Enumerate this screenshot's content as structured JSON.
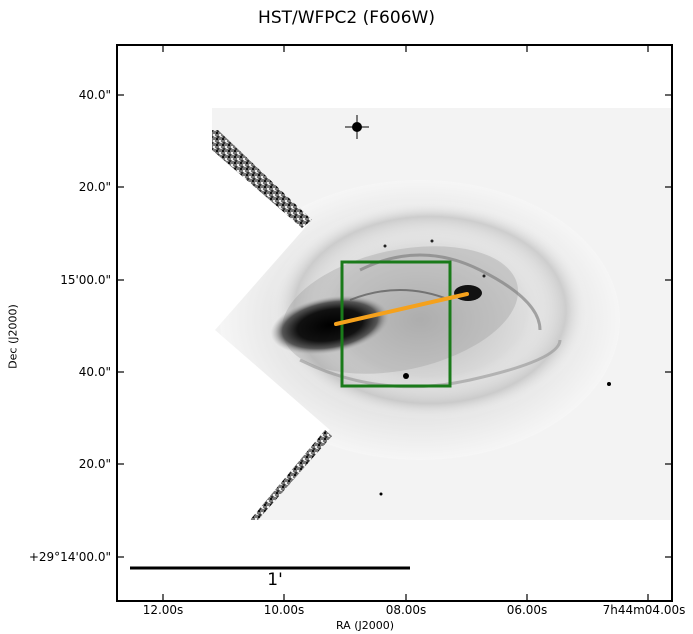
{
  "figure": {
    "title": "HST/WFPC2 (F606W)",
    "xlabel": "RA (J2000)",
    "ylabel": "Dec (J2000)",
    "x_ticks": [
      "12.00s",
      "10.00s",
      "08.00s",
      "06.00s",
      "7h44m04.00s"
    ],
    "y_ticks": [
      "40.0\"",
      "20.0\"",
      "15'00.0\"",
      "40.0\"",
      "20.0\"",
      "+29°14'00.0\""
    ],
    "scale_bar_label": "1'",
    "colors": {
      "box": "#1a7a1a",
      "slit": "#f5a11c",
      "image_ink": "#000000",
      "background": "#ffffff"
    }
  }
}
